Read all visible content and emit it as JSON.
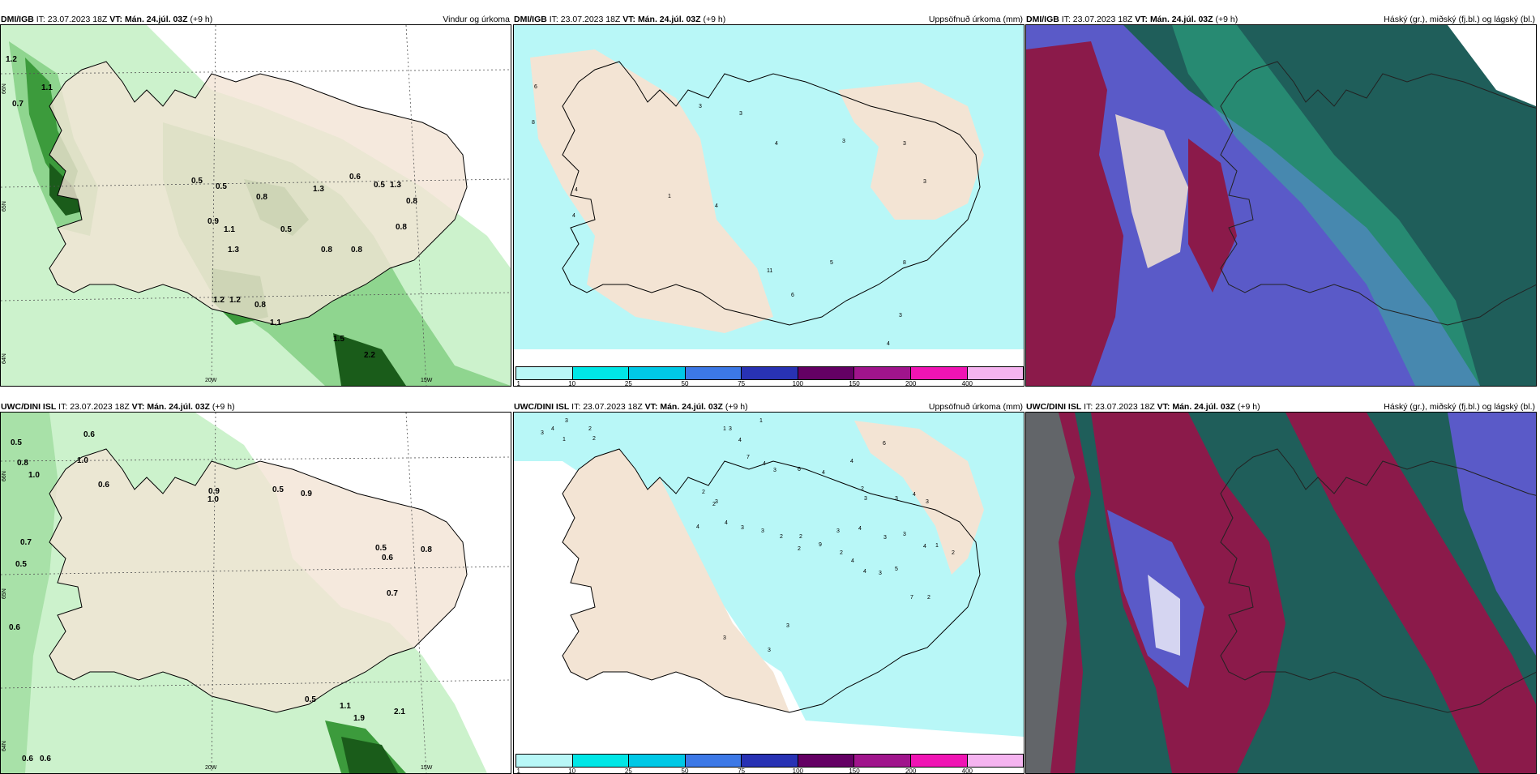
{
  "panels": [
    {
      "id": "p1",
      "header": {
        "model": "DMI/IGB",
        "it_label": "IT:",
        "it": "23.07.2023 18Z",
        "vt_label": "VT:",
        "vt": "Mán. 24.júl. 03Z",
        "lead": "(+9 h)",
        "product": "Vindur og úrkoma"
      }
    },
    {
      "id": "p2",
      "header": {
        "model": "DMI/IGB",
        "it_label": "IT:",
        "it": "23.07.2023 18Z",
        "vt_label": "VT:",
        "vt": "Mán. 24.júl. 03Z",
        "lead": "(+9 h)",
        "product": "Uppsöfnuð úrkoma (mm)"
      }
    },
    {
      "id": "p3",
      "header": {
        "model": "DMI/IGB",
        "it_label": "IT:",
        "it": "23.07.2023 18Z",
        "vt_label": "VT:",
        "vt": "Mán. 24.júl. 03Z",
        "lead": "(+9 h)",
        "product": "Háský (gr.), miðský (fj.bl.) og lágský (bl.)"
      }
    },
    {
      "id": "p4",
      "header": {
        "model": "UWC/DINI ISL",
        "it_label": "IT:",
        "it": "23.07.2023 18Z",
        "vt_label": "VT:",
        "vt": "Mán. 24.júl. 03Z",
        "lead": "(+9 h)",
        "product": ""
      }
    },
    {
      "id": "p5",
      "header": {
        "model": "UWC/DINI ISL",
        "it_label": "IT:",
        "it": "23.07.2023 18Z",
        "vt_label": "VT:",
        "vt": "Mán. 24.júl. 03Z",
        "lead": "(+9 h)",
        "product": "Uppsöfnuð úrkoma (mm)"
      }
    },
    {
      "id": "p6",
      "header": {
        "model": "UWC/DINI ISL",
        "it_label": "IT:",
        "it": "23.07.2023 18Z",
        "vt_label": "VT:",
        "vt": "Mán. 24.júl. 03Z",
        "lead": "(+9 h)",
        "product": "Háský (gr.), miðský (fj.bl.) og lágský (bl.)"
      }
    }
  ],
  "grid_labels": {
    "lat66": "66N",
    "lat65": "65N",
    "lat64": "64N",
    "lon20": "20W",
    "lon15": "15W"
  },
  "colorbar": {
    "ticks": [
      "1",
      "10",
      "25",
      "50",
      "75",
      "100",
      "150",
      "200",
      "400"
    ],
    "colors": [
      "#b8f7f7",
      "#00e6e6",
      "#00c8e6",
      "#3c78e6",
      "#2832b4",
      "#640064",
      "#a0148c",
      "#f014b4",
      "#f5b4f0"
    ]
  },
  "colors": {
    "land": "#f3e4d4",
    "precip_light": "#ccf2cc",
    "precip_mid": "#8fd58f",
    "precip_dark": "#3c9b3c",
    "precip_darkest": "#1a5c1a",
    "accum_light": "#b8f7f7",
    "cloud_high": "#1f5e5a",
    "cloud_mid": "#8b1a4a",
    "cloud_low": "#5a5ac8",
    "cloud_green": "#30c090"
  },
  "p1_values": [
    "1.2",
    "0.7",
    "1.1",
    "0.5",
    "0.5",
    "0.6",
    "0.5",
    "0.8",
    "1.3",
    "0.8",
    "0.9",
    "1.1",
    "1.3",
    "0.5",
    "0.8",
    "0.8",
    "0.8",
    "1.2",
    "1.2",
    "0.8",
    "1.1",
    "1.5",
    "2.2",
    "1.3"
  ],
  "p4_values": [
    "0.5",
    "0.6",
    "0.8",
    "1.0",
    "1.0",
    "0.6",
    "0.9",
    "1.0",
    "0.5",
    "0.9",
    "0.7",
    "0.5",
    "0.5",
    "0.6",
    "0.8",
    "0.7",
    "0.6",
    "0.5",
    "1.1",
    "1.9",
    "2.1",
    "0.6",
    "0.6"
  ],
  "p2_values": [
    "6",
    "8",
    "3",
    "3",
    "4",
    "3",
    "3",
    "3",
    "1",
    "4",
    "4",
    "4",
    "11",
    "6",
    "5",
    "8",
    "3",
    "4"
  ],
  "p5_values": [
    "3",
    "4",
    "3",
    "1",
    "2",
    "2",
    "1",
    "1",
    "3",
    "4",
    "7",
    "4",
    "3",
    "6",
    "4",
    "4",
    "6",
    "2",
    "3",
    "3",
    "4",
    "3",
    "2",
    "3",
    "2",
    "4",
    "4",
    "3",
    "3",
    "2",
    "2",
    "3",
    "4",
    "3",
    "3",
    "4",
    "1",
    "2",
    "2",
    "9",
    "2",
    "4",
    "4",
    "3",
    "5",
    "7",
    "2",
    "3",
    "3",
    "3"
  ]
}
